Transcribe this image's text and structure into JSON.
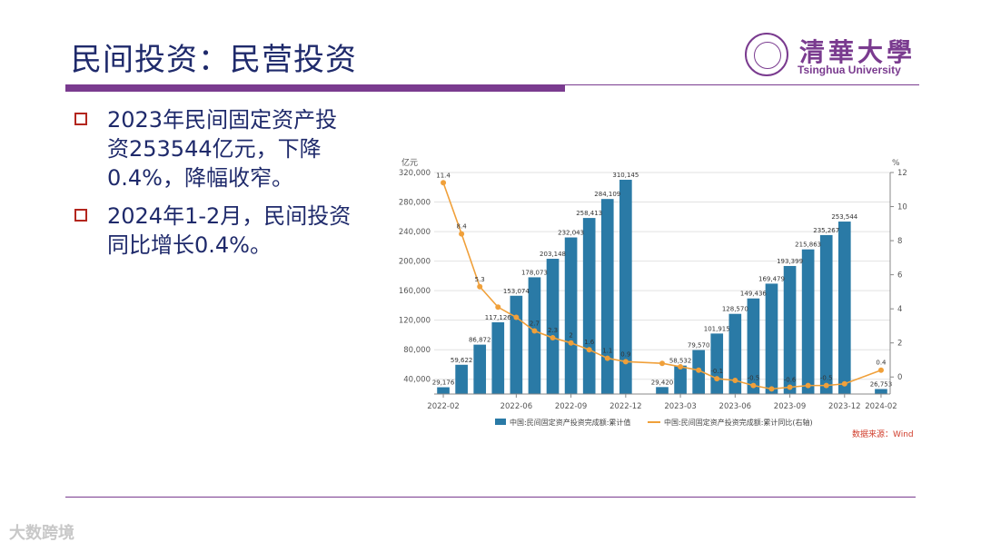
{
  "slide": {
    "title": "民间投资：民营投资",
    "logo_cn": "清華大學",
    "logo_en": "Tsinghua University",
    "bullets": [
      "2023年民间固定资产投\n资253544亿元，下降\n0.4%，降幅收窄。",
      "2024年1-2月，民间投资\n同比增长0.4%。"
    ],
    "watermark": "大数跨境",
    "colors": {
      "accent": "#7a3b8f",
      "title": "#1f2a6b",
      "bullet_box": "#b3261e"
    }
  },
  "chart_data": {
    "type": "bar+line",
    "left_unit": "亿元",
    "right_unit": "%",
    "x_ticks": [
      "2022-02",
      "2022-06",
      "2022-09",
      "2022-12",
      "2023-03",
      "2023-06",
      "2023-09",
      "2023-12",
      "2024-02"
    ],
    "months": [
      "2022-02",
      "2022-03",
      "2022-04",
      "2022-05",
      "2022-06",
      "2022-07",
      "2022-08",
      "2022-09",
      "2022-10",
      "2022-11",
      "2022-12",
      "2023-02",
      "2023-03",
      "2023-04",
      "2023-05",
      "2023-06",
      "2023-07",
      "2023-08",
      "2023-09",
      "2023-10",
      "2023-11",
      "2023-12",
      "2024-02"
    ],
    "bar_values": [
      29176,
      59622,
      86872,
      117126,
      153074,
      178073,
      203148,
      232043,
      258413,
      284109,
      310145,
      29420,
      58532,
      79570,
      101915,
      128570,
      149436,
      169479,
      193399,
      215863,
      235267,
      253544,
      26753
    ],
    "bar_labels": [
      "29,176",
      "59,622",
      "86,872",
      "117,126",
      "153,074",
      "178,073",
      "203,148",
      "232,043",
      "258,413",
      "284,109",
      "310,145",
      "29,420",
      "58,532",
      "79,570",
      "101,915",
      "128,570",
      "149,436",
      "169,479",
      "193,399",
      "215,863",
      "235,267",
      "253,544",
      "26,753"
    ],
    "line_values": [
      11.4,
      8.4,
      5.3,
      4.1,
      3.5,
      2.7,
      2.3,
      2.0,
      1.6,
      1.1,
      0.9,
      0.8,
      0.6,
      0.4,
      -0.1,
      -0.2,
      -0.5,
      -0.7,
      -0.6,
      -0.5,
      -0.5,
      -0.4,
      0.4
    ],
    "line_labels": [
      "11.4",
      "8.4",
      "5.3",
      "",
      "",
      "2.7",
      "2.3",
      "2",
      "1.6",
      "1.1",
      "0.9",
      "",
      "",
      "",
      "-0.1",
      "",
      "-0.5",
      "",
      "-0.6",
      "",
      "-0.5",
      "",
      "0.4"
    ],
    "y_left": {
      "min": 20000,
      "max": 320000,
      "ticks": [
        "40,000",
        "80,000",
        "120,000",
        "160,000",
        "200,000",
        "240,000",
        "280,000",
        "320,000"
      ],
      "tick_values": [
        40000,
        80000,
        120000,
        160000,
        200000,
        240000,
        280000,
        320000
      ]
    },
    "y_right": {
      "min": -1,
      "max": 12,
      "ticks": [
        "0",
        "2",
        "4",
        "6",
        "8",
        "10",
        "12"
      ],
      "tick_values": [
        0,
        2,
        4,
        6,
        8,
        10,
        12
      ]
    },
    "legend": {
      "bar": "中国:民间固定资产投资完成额:累计值",
      "line": "中国:民间固定资产投资完成额:累计同比(右轴)"
    },
    "source": "数据来源：Wind",
    "colors": {
      "bar": "#2a7aa6",
      "line": "#f0a03a",
      "grid": "#e2e2e2",
      "source": "#d03c2a"
    }
  }
}
